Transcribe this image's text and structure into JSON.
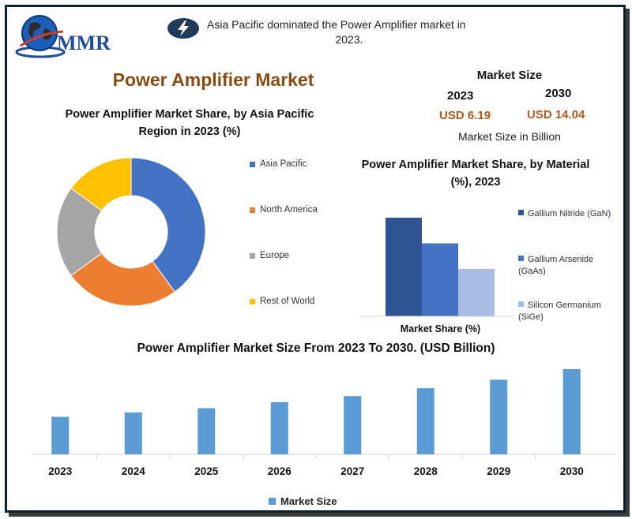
{
  "brand": {
    "logo_text": "MMR"
  },
  "headline": {
    "line1": "Asia Pacific dominated the Power Amplifier market in",
    "line2": "2023.",
    "icon": "lightning-icon"
  },
  "main_title": "Power Amplifier Market",
  "market_size": {
    "title": "Market Size",
    "year_start": "2023",
    "year_end": "2030",
    "value_start": "USD 6.19",
    "value_end": "USD 14.04",
    "unit": "Market Size in Billion"
  },
  "colors": {
    "asia_pacific": "#4472c4",
    "north_america": "#ed7d31",
    "europe": "#a5a5a5",
    "rest_of_world": "#ffc000",
    "gan": "#2f5597",
    "gaas": "#4472c4",
    "sige": "#a9bce4",
    "market_size": "#5b9bd5",
    "title_brown": "#8b4a12",
    "value_orange": "#b25a1c"
  },
  "chart_data": [
    {
      "type": "pie",
      "title": "Power Amplifier Market Share, by Asia Pacific Region in 2023 (%)",
      "labels": [
        "Asia Pacific",
        "North America",
        "Europe",
        "Rest of World"
      ],
      "values": [
        40,
        25,
        20,
        15
      ],
      "legend": "right"
    },
    {
      "type": "bar",
      "title": "Power Amplifier Market Share,  by Material (%), 2023",
      "xlabel": "Market Share (%)",
      "categories": [
        "Market Share (%)"
      ],
      "series": [
        {
          "name": "Gallium Nitride (GaN)",
          "values": [
            50
          ]
        },
        {
          "name": "Gallium Arsenide (GaAs)",
          "values": [
            37
          ]
        },
        {
          "name": "Silicon Germanium (SiGe)",
          "values": [
            24
          ]
        }
      ],
      "ylim": [
        0,
        50
      ],
      "legend": "right"
    },
    {
      "type": "bar",
      "title": "Power Amplifier Market Size From 2023 To 2030. (USD Billion)",
      "categories": [
        "2023",
        "2024",
        "2025",
        "2026",
        "2027",
        "2028",
        "2029",
        "2030"
      ],
      "series": [
        {
          "name": "Market  Size",
          "values": [
            6.19,
            6.9,
            7.6,
            8.6,
            9.6,
            10.9,
            12.3,
            14.04
          ]
        }
      ],
      "ylim": [
        0,
        16
      ],
      "legend": "bottom"
    }
  ]
}
